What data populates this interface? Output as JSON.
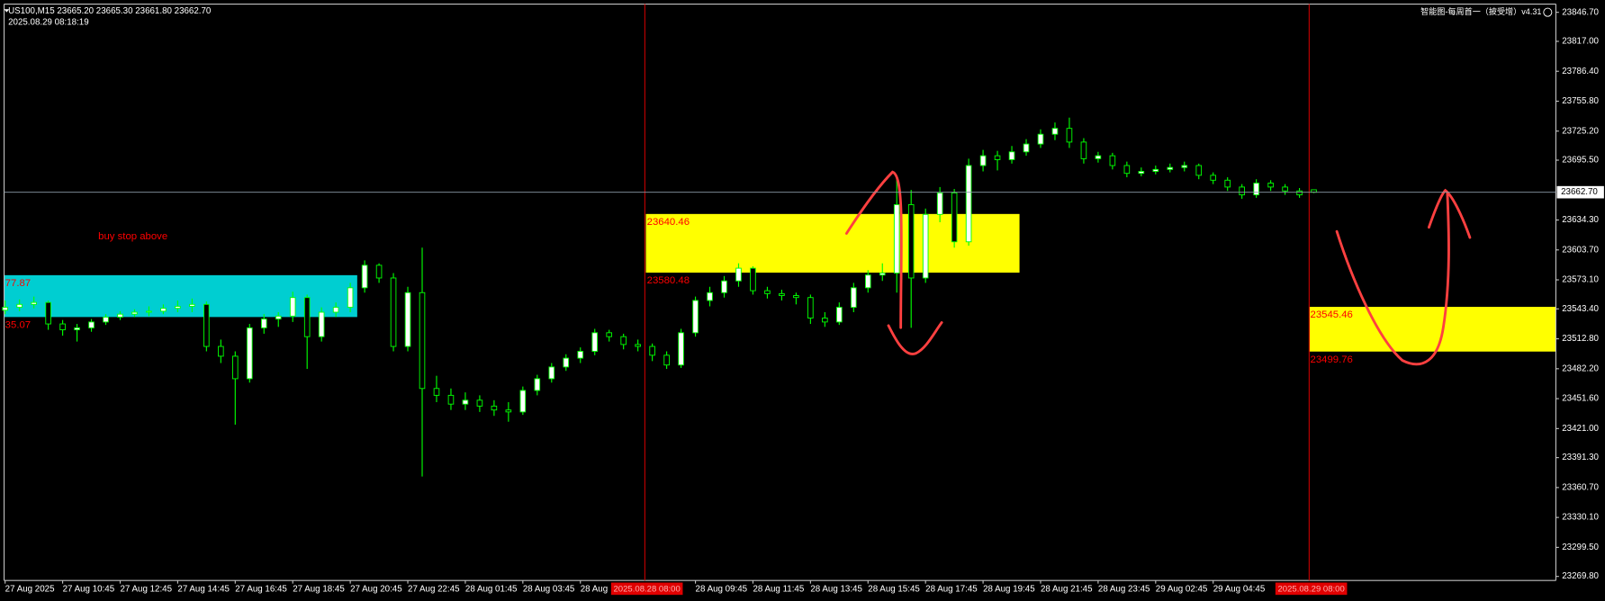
{
  "chart_data": {
    "type": "candlestick",
    "header": "US100,M15  23665.20 23665.30 23661.80 23662.70",
    "time": "2025.08.29 08:18:19",
    "indicator": "智能图-每周首一（披受增）v4.31",
    "note": "buy stop above",
    "up_color": "#ffffff",
    "down_color": "#000000",
    "wick_color": "#00ff00",
    "ylim": [
      23265.6,
      23855.1
    ],
    "yticks": [
      {
        "value": 23846.7,
        "label": "23846.70"
      },
      {
        "value": 23817,
        "label": "23817.00"
      },
      {
        "value": 23786.4,
        "label": "23786.40"
      },
      {
        "value": 23755.8,
        "label": "23755.80"
      },
      {
        "value": 23725.2,
        "label": "23725.20"
      },
      {
        "value": 23695.5,
        "label": "23695.50"
      },
      {
        "value": 23634.3,
        "label": "23634.30"
      },
      {
        "value": 23603.7,
        "label": "23603.70"
      },
      {
        "value": 23573.1,
        "label": "23573.10"
      },
      {
        "value": 23543.4,
        "label": "23543.40"
      },
      {
        "value": 23512.8,
        "label": "23512.80"
      },
      {
        "value": 23482.2,
        "label": "23482.20"
      },
      {
        "value": 23451.6,
        "label": "23451.60"
      },
      {
        "value": 23421,
        "label": "23421.00"
      },
      {
        "value": 23391.3,
        "label": "23391.30"
      },
      {
        "value": 23360.7,
        "label": "23360.70"
      },
      {
        "value": 23330.1,
        "label": "23330.10"
      },
      {
        "value": 23299.5,
        "label": "23299.50"
      },
      {
        "value": 23269.8,
        "label": "23269.80"
      }
    ],
    "last_price": {
      "value": 23662.7,
      "label": "23662.70"
    },
    "session_markers": [
      "2025.08.28 08:00",
      "2025.08.29 08:00"
    ],
    "zones": [
      {
        "color": "#00ced1",
        "top": 23577.87,
        "top_label": "77.87",
        "bottom": 23535.07,
        "bottom_label": "35.07"
      },
      {
        "color": "#ffff00",
        "top": 23640.46,
        "top_label": "23640.46",
        "bottom": 23580.48,
        "bottom_label": "23580.48"
      },
      {
        "color": "#ffff00",
        "top": 23545.46,
        "top_label": "23545.46",
        "bottom": 23499.76,
        "bottom_label": "23499.76"
      }
    ],
    "categories": [
      "27 Aug 2025",
      null,
      null,
      null,
      "27 Aug 10:45",
      null,
      null,
      null,
      "27 Aug 12:45",
      null,
      null,
      null,
      "27 Aug 14:45",
      null,
      null,
      null,
      "27 Aug 16:45",
      null,
      null,
      null,
      "27 Aug 18:45",
      null,
      null,
      null,
      "27 Aug 20:45",
      null,
      null,
      null,
      "27 Aug 22:45",
      null,
      null,
      null,
      "28 Aug 01:45",
      null,
      null,
      null,
      "28 Aug 03:45",
      null,
      null,
      null,
      "28 Aug",
      null,
      null,
      null,
      null,
      null,
      null,
      null,
      "28 Aug 09:45",
      null,
      null,
      null,
      "28 Aug 11:45",
      null,
      null,
      null,
      "28 Aug 13:45",
      null,
      null,
      null,
      "28 Aug 15:45",
      null,
      null,
      null,
      "28 Aug 17:45",
      null,
      null,
      null,
      "28 Aug 19:45",
      null,
      null,
      null,
      "28 Aug 21:45",
      null,
      null,
      null,
      "28 Aug 23:45",
      null,
      null,
      null,
      "29 Aug 02:45",
      null,
      null,
      null,
      "29 Aug 04:45",
      null,
      null,
      null,
      null,
      null,
      null,
      null
    ],
    "candles": [
      [
        23542,
        23552,
        23538,
        23545
      ],
      [
        23545,
        23553,
        23541,
        23548
      ],
      [
        23548,
        23556,
        23544,
        23550
      ],
      [
        23550,
        23552,
        23522,
        23528
      ],
      [
        23528,
        23532,
        23516,
        23522
      ],
      [
        23522,
        23528,
        23510,
        23524
      ],
      [
        23524,
        23533,
        23520,
        23530
      ],
      [
        23530,
        23538,
        23527,
        23535
      ],
      [
        23535,
        23541,
        23532,
        23538
      ],
      [
        23538,
        23543,
        23535,
        23540
      ],
      [
        23540,
        23546,
        23536,
        23541
      ],
      [
        23541,
        23548,
        23538,
        23544
      ],
      [
        23544,
        23552,
        23540,
        23546
      ],
      [
        23546,
        23554,
        23540,
        23548
      ],
      [
        23548,
        23551,
        23500,
        23505
      ],
      [
        23505,
        23512,
        23488,
        23495
      ],
      [
        23495,
        23500,
        23425,
        23472
      ],
      [
        23472,
        23528,
        23468,
        23524
      ],
      [
        23524,
        23538,
        23518,
        23533
      ],
      [
        23533,
        23540,
        23525,
        23536
      ],
      [
        23536,
        23561,
        23530,
        23555
      ],
      [
        23555,
        23558,
        23482,
        23515
      ],
      [
        23515,
        23545,
        23510,
        23540
      ],
      [
        23540,
        23550,
        23535,
        23545
      ],
      [
        23545,
        23570,
        23540,
        23565
      ],
      [
        23565,
        23593,
        23560,
        23588
      ],
      [
        23588,
        23590,
        23570,
        23575
      ],
      [
        23575,
        23580,
        23500,
        23505
      ],
      [
        23505,
        23566,
        23500,
        23560
      ],
      [
        23560,
        23606,
        23372,
        23462
      ],
      [
        23462,
        23475,
        23448,
        23455
      ],
      [
        23455,
        23462,
        23440,
        23446
      ],
      [
        23446,
        23458,
        23440,
        23450
      ],
      [
        23450,
        23455,
        23438,
        23444
      ],
      [
        23444,
        23450,
        23434,
        23440
      ],
      [
        23440,
        23448,
        23428,
        23438
      ],
      [
        23438,
        23464,
        23435,
        23460
      ],
      [
        23460,
        23476,
        23455,
        23472
      ],
      [
        23472,
        23488,
        23468,
        23484
      ],
      [
        23484,
        23497,
        23480,
        23493
      ],
      [
        23493,
        23504,
        23488,
        23500
      ],
      [
        23500,
        23523,
        23496,
        23519
      ],
      [
        23519,
        23522,
        23510,
        23515
      ],
      [
        23515,
        23518,
        23502,
        23507
      ],
      [
        23507,
        23512,
        23500,
        23505
      ],
      [
        23505,
        23508,
        23490,
        23496
      ],
      [
        23496,
        23500,
        23482,
        23486
      ],
      [
        23486,
        23523,
        23483,
        23519
      ],
      [
        23519,
        23556,
        23515,
        23552
      ],
      [
        23552,
        23566,
        23546,
        23560
      ],
      [
        23560,
        23577,
        23555,
        23572
      ],
      [
        23572,
        23590,
        23566,
        23585
      ],
      [
        23585,
        23587,
        23558,
        23562
      ],
      [
        23562,
        23566,
        23554,
        23559
      ],
      [
        23559,
        23563,
        23552,
        23557
      ],
      [
        23557,
        23560,
        23548,
        23555
      ],
      [
        23555,
        23558,
        23528,
        23534
      ],
      [
        23534,
        23540,
        23525,
        23530
      ],
      [
        23530,
        23550,
        23527,
        23545
      ],
      [
        23545,
        23570,
        23540,
        23565
      ],
      [
        23565,
        23583,
        23560,
        23578
      ],
      [
        23578,
        23590,
        23572,
        23580
      ],
      [
        23580,
        23676,
        23560,
        23650
      ],
      [
        23650,
        23665,
        23524,
        23575
      ],
      [
        23575,
        23646,
        23570,
        23640
      ],
      [
        23640,
        23668,
        23632,
        23662
      ],
      [
        23662,
        23666,
        23606,
        23612
      ],
      [
        23612,
        23697,
        23608,
        23690
      ],
      [
        23690,
        23706,
        23684,
        23700
      ],
      [
        23700,
        23705,
        23685,
        23696
      ],
      [
        23696,
        23710,
        23692,
        23704
      ],
      [
        23704,
        23717,
        23700,
        23712
      ],
      [
        23712,
        23727,
        23708,
        23722
      ],
      [
        23722,
        23734,
        23716,
        23728
      ],
      [
        23728,
        23739,
        23708,
        23714
      ],
      [
        23714,
        23718,
        23692,
        23697
      ],
      [
        23697,
        23704,
        23693,
        23700
      ],
      [
        23700,
        23703,
        23686,
        23690
      ],
      [
        23690,
        23694,
        23678,
        23682
      ],
      [
        23682,
        23688,
        23679,
        23684
      ],
      [
        23684,
        23690,
        23681,
        23686
      ],
      [
        23686,
        23692,
        23683,
        23688
      ],
      [
        23688,
        23694,
        23684,
        23690
      ],
      [
        23690,
        23692,
        23676,
        23680
      ],
      [
        23680,
        23683,
        23671,
        23675
      ],
      [
        23675,
        23678,
        23664,
        23668
      ],
      [
        23668,
        23671,
        23656,
        23660
      ],
      [
        23660,
        23676,
        23657,
        23672
      ],
      [
        23672,
        23675,
        23664,
        23668
      ],
      [
        23668,
        23671,
        23660,
        23664
      ],
      [
        23664,
        23667,
        23657,
        23660
      ],
      [
        23665.2,
        23665.3,
        23661.8,
        23662.7
      ]
    ]
  }
}
